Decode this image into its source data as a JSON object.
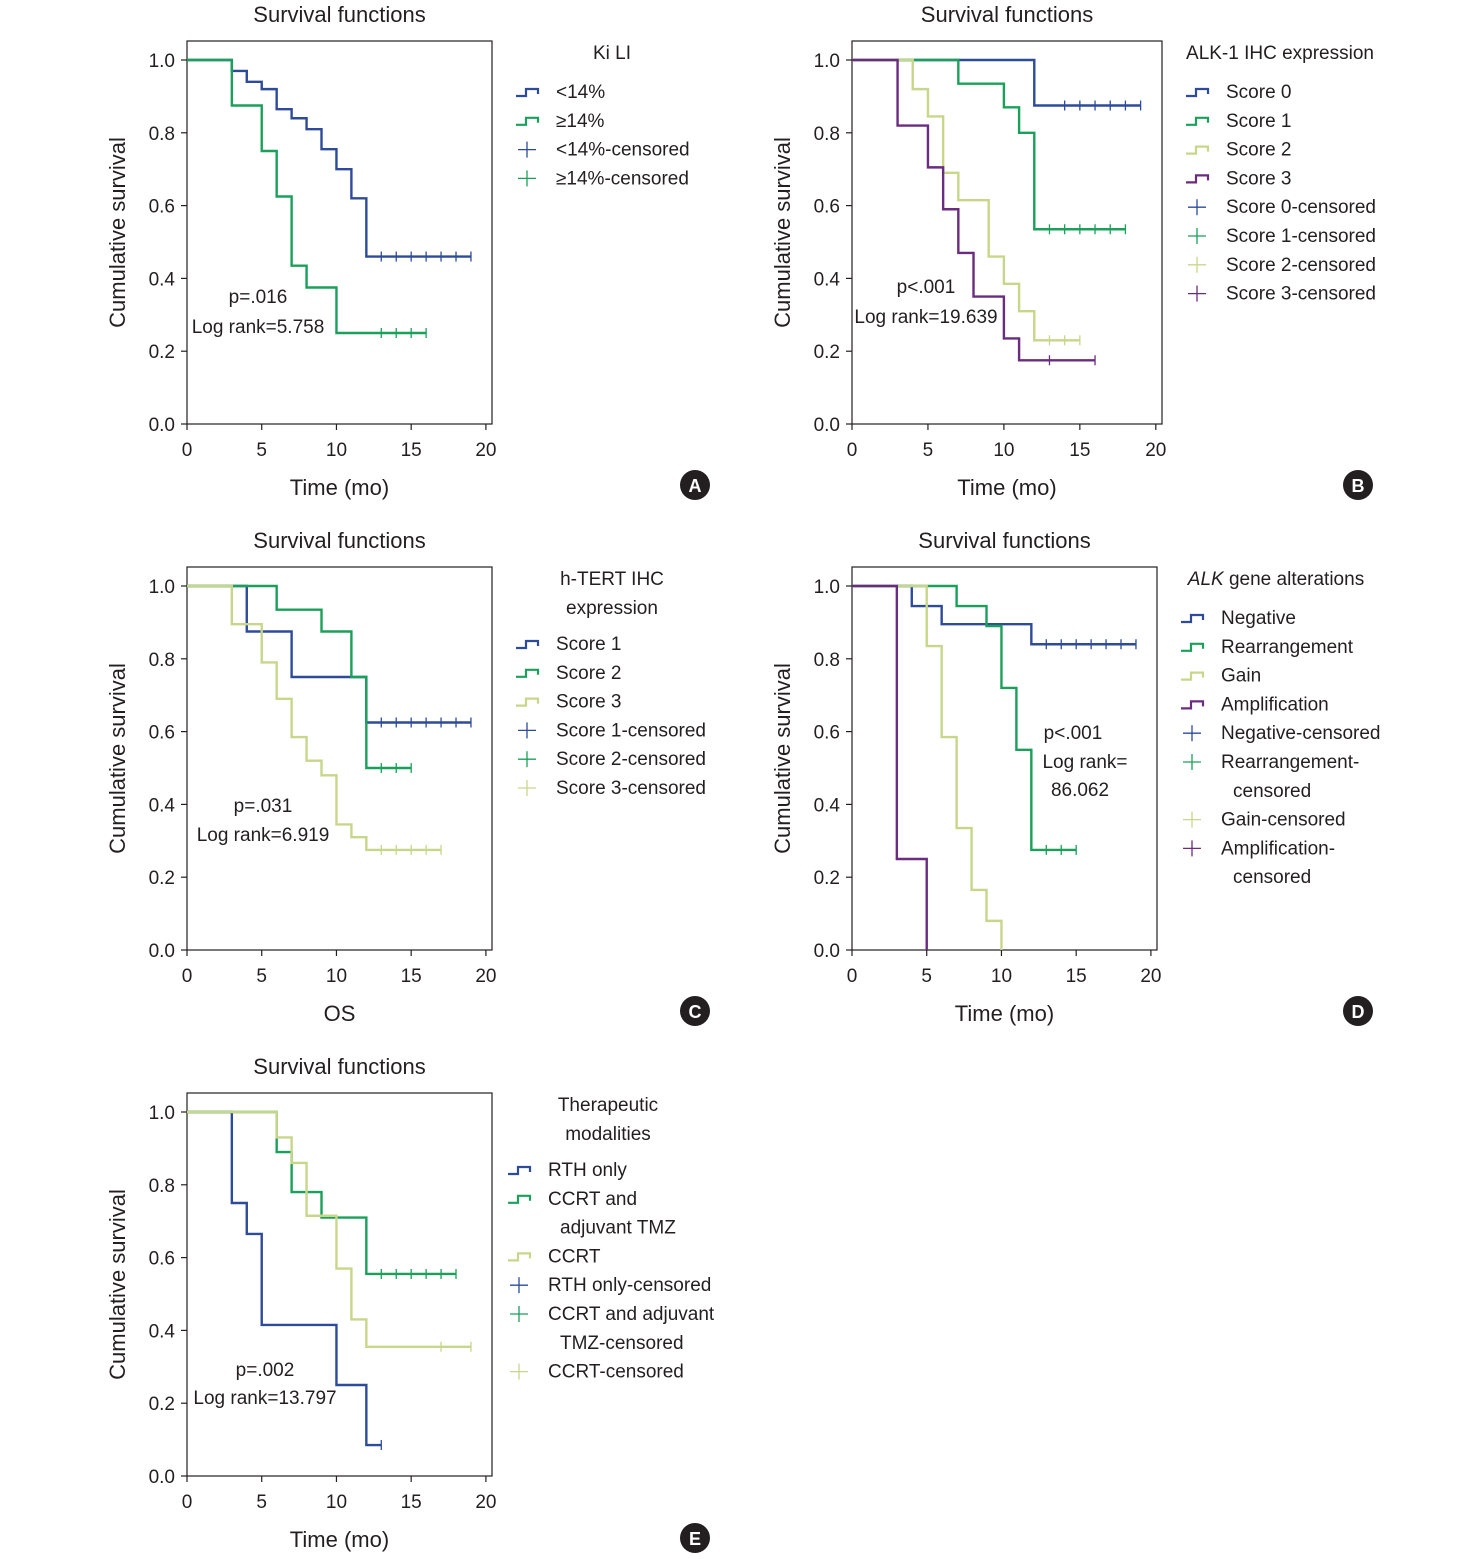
{
  "colors": {
    "blue": "#2e4b9a",
    "green": "#1aa05a",
    "yellow": "#c8d68a",
    "purple": "#6a2c7f",
    "axis": "#231f20"
  },
  "chart_data": [
    {
      "panel": "A",
      "type": "line",
      "step": true,
      "title": "Survival functions",
      "xlabel": "Time (mo)",
      "ylabel": "Cumulative survival",
      "xlim": [
        0,
        20
      ],
      "ylim": [
        0,
        1
      ],
      "xticks": [
        "0",
        "5",
        "10",
        "15",
        "20"
      ],
      "yticks": [
        "0.0",
        "0.2",
        "0.4",
        "0.6",
        "0.8",
        "1.0"
      ],
      "legend_title": [
        "Ki LI"
      ],
      "legend": [
        "<14%",
        "≥14%",
        "<14%-censored",
        "≥14%-censored"
      ],
      "annotation": [
        "p=.016",
        "Log rank=5.758"
      ],
      "series": [
        {
          "name": "<14%",
          "color": "blue",
          "steps": [
            [
              0,
              1
            ],
            [
              3,
              0.97
            ],
            [
              4,
              0.94
            ],
            [
              5,
              0.92
            ],
            [
              6,
              0.865
            ],
            [
              7,
              0.84
            ],
            [
              8,
              0.81
            ],
            [
              9,
              0.755
            ],
            [
              10,
              0.7
            ],
            [
              11,
              0.62
            ],
            [
              12,
              0.46
            ],
            [
              19,
              0.46
            ]
          ],
          "censored": [
            13,
            14,
            15,
            16,
            17,
            18,
            19
          ]
        },
        {
          "name": "≥14%",
          "color": "green",
          "steps": [
            [
              0,
              1
            ],
            [
              3,
              0.875
            ],
            [
              5,
              0.75
            ],
            [
              6,
              0.625
            ],
            [
              7,
              0.435
            ],
            [
              8,
              0.375
            ],
            [
              10,
              0.25
            ],
            [
              16,
              0.25
            ]
          ],
          "censored": [
            13,
            14,
            15,
            16
          ]
        }
      ]
    },
    {
      "panel": "B",
      "type": "line",
      "step": true,
      "title": "Survival functions",
      "xlabel": "Time (mo)",
      "ylabel": "Cumulative survival",
      "xlim": [
        0,
        20
      ],
      "ylim": [
        0,
        1
      ],
      "xticks": [
        "0",
        "5",
        "10",
        "15",
        "20"
      ],
      "yticks": [
        "0.0",
        "0.2",
        "0.4",
        "0.6",
        "0.8",
        "1.0"
      ],
      "legend_title": [
        "ALK-1 IHC expression"
      ],
      "legend": [
        "Score 0",
        "Score 1",
        "Score 2",
        "Score 3",
        "Score 0-censored",
        "Score 1-censored",
        "Score 2-censored",
        "Score 3-censored"
      ],
      "annotation": [
        "p<.001",
        "Log rank=19.639"
      ],
      "series": [
        {
          "name": "Score 0",
          "color": "blue",
          "steps": [
            [
              0,
              1
            ],
            [
              12,
              0.875
            ],
            [
              19,
              0.875
            ]
          ],
          "censored": [
            14,
            15,
            16,
            17,
            18,
            19
          ]
        },
        {
          "name": "Score 1",
          "color": "green",
          "steps": [
            [
              0,
              1
            ],
            [
              7,
              0.935
            ],
            [
              10,
              0.87
            ],
            [
              11,
              0.8
            ],
            [
              12,
              0.535
            ],
            [
              18,
              0.535
            ]
          ],
          "censored": [
            13,
            14,
            15,
            16,
            17,
            18
          ]
        },
        {
          "name": "Score 2",
          "color": "yellow",
          "steps": [
            [
              0,
              1
            ],
            [
              4,
              0.92
            ],
            [
              5,
              0.845
            ],
            [
              6,
              0.69
            ],
            [
              7,
              0.615
            ],
            [
              9,
              0.46
            ],
            [
              10,
              0.385
            ],
            [
              11,
              0.31
            ],
            [
              12,
              0.23
            ],
            [
              15,
              0.23
            ]
          ],
          "censored": [
            13,
            14,
            15
          ]
        },
        {
          "name": "Score 3",
          "color": "purple",
          "steps": [
            [
              0,
              1
            ],
            [
              3,
              0.82
            ],
            [
              5,
              0.705
            ],
            [
              6,
              0.59
            ],
            [
              7,
              0.47
            ],
            [
              8,
              0.35
            ],
            [
              10,
              0.235
            ],
            [
              11,
              0.175
            ],
            [
              16,
              0.175
            ]
          ],
          "censored": [
            13,
            16
          ]
        }
      ]
    },
    {
      "panel": "C",
      "type": "line",
      "step": true,
      "title": "Survival functions",
      "xlabel": "OS",
      "ylabel": "Cumulative survival",
      "xlim": [
        0,
        20
      ],
      "ylim": [
        0,
        1
      ],
      "xticks": [
        "0",
        "5",
        "10",
        "15",
        "20"
      ],
      "yticks": [
        "0.0",
        "0.2",
        "0.4",
        "0.6",
        "0.8",
        "1.0"
      ],
      "legend_title": [
        "h-TERT IHC",
        "expression"
      ],
      "legend": [
        "Score 1",
        "Score 2",
        "Score 3",
        "Score 1-censored",
        "Score 2-censored",
        "Score 3-censored"
      ],
      "annotation": [
        "p=.031",
        "Log rank=6.919"
      ],
      "series": [
        {
          "name": "Score 1",
          "color": "blue",
          "steps": [
            [
              0,
              1
            ],
            [
              4,
              0.875
            ],
            [
              7,
              0.75
            ],
            [
              12,
              0.625
            ],
            [
              19,
              0.625
            ]
          ],
          "censored": [
            13,
            14,
            15,
            16,
            17,
            18,
            19
          ]
        },
        {
          "name": "Score 2",
          "color": "green",
          "steps": [
            [
              0,
              1
            ],
            [
              6,
              0.935
            ],
            [
              9,
              0.875
            ],
            [
              11,
              0.75
            ],
            [
              12,
              0.5
            ],
            [
              15,
              0.5
            ]
          ],
          "censored": [
            13,
            14,
            15
          ]
        },
        {
          "name": "Score 3",
          "color": "yellow",
          "steps": [
            [
              0,
              1
            ],
            [
              3,
              0.895
            ],
            [
              5,
              0.79
            ],
            [
              6,
              0.69
            ],
            [
              7,
              0.585
            ],
            [
              8,
              0.52
            ],
            [
              9,
              0.48
            ],
            [
              10,
              0.345
            ],
            [
              11,
              0.31
            ],
            [
              12,
              0.275
            ],
            [
              17,
              0.275
            ]
          ],
          "censored": [
            13,
            14,
            15,
            16,
            17
          ]
        }
      ]
    },
    {
      "panel": "D",
      "type": "line",
      "step": true,
      "title": "Survival functions",
      "xlabel": "Time (mo)",
      "ylabel": "Cumulative survival",
      "xlim": [
        0,
        20
      ],
      "ylim": [
        0,
        1
      ],
      "xticks": [
        "0",
        "5",
        "10",
        "15",
        "20"
      ],
      "yticks": [
        "0.0",
        "0.2",
        "0.4",
        "0.6",
        "0.8",
        "1.0"
      ],
      "legend_title_italic": "ALK",
      "legend_title_rest": " gene alterations",
      "legend": [
        "Negative",
        "Rearrangement",
        "Gain",
        "Amplification",
        "Negative-censored",
        "Rearrangement-",
        "censored",
        "Gain-censored",
        "Amplification-",
        "censored"
      ],
      "annotation": [
        "p<.001",
        "Log rank=",
        "86.062"
      ],
      "series": [
        {
          "name": "Negative",
          "color": "blue",
          "steps": [
            [
              0,
              1
            ],
            [
              4,
              0.945
            ],
            [
              6,
              0.895
            ],
            [
              12,
              0.84
            ],
            [
              19,
              0.84
            ]
          ],
          "censored": [
            13,
            14,
            15,
            16,
            17,
            18,
            19
          ]
        },
        {
          "name": "Rearrangement",
          "color": "green",
          "steps": [
            [
              0,
              1
            ],
            [
              7,
              0.945
            ],
            [
              9,
              0.89
            ],
            [
              10,
              0.72
            ],
            [
              11,
              0.55
            ],
            [
              12,
              0.275
            ],
            [
              15,
              0.275
            ]
          ],
          "censored": [
            13,
            14,
            15
          ]
        },
        {
          "name": "Gain",
          "color": "yellow",
          "steps": [
            [
              0,
              1
            ],
            [
              5,
              0.835
            ],
            [
              6,
              0.585
            ],
            [
              7,
              0.335
            ],
            [
              8,
              0.165
            ],
            [
              9,
              0.08
            ],
            [
              10,
              0
            ]
          ],
          "censored": []
        },
        {
          "name": "Amplification",
          "color": "purple",
          "steps": [
            [
              0,
              1
            ],
            [
              3,
              0.25
            ],
            [
              5,
              0
            ]
          ],
          "censored": []
        }
      ]
    },
    {
      "panel": "E",
      "type": "line",
      "step": true,
      "title": "Survival functions",
      "xlabel": "Time (mo)",
      "ylabel": "Cumulative survival",
      "xlim": [
        0,
        20
      ],
      "ylim": [
        0,
        1
      ],
      "xticks": [
        "0",
        "5",
        "10",
        "15",
        "20"
      ],
      "yticks": [
        "0.0",
        "0.2",
        "0.4",
        "0.6",
        "0.8",
        "1.0"
      ],
      "legend_title": [
        "Therapeutic",
        "modalities"
      ],
      "legend": [
        "RTH only",
        "CCRT and",
        "adjuvant TMZ",
        "CCRT",
        "RTH only-censored",
        "CCRT and adjuvant",
        "TMZ-censored",
        "CCRT-censored"
      ],
      "annotation": [
        "p=.002",
        "Log rank=13.797"
      ],
      "series": [
        {
          "name": "RTH only",
          "color": "blue",
          "steps": [
            [
              0,
              1
            ],
            [
              3,
              0.75
            ],
            [
              4,
              0.665
            ],
            [
              5,
              0.415
            ],
            [
              10,
              0.25
            ],
            [
              12,
              0.085
            ],
            [
              13,
              0.085
            ]
          ],
          "censored": [
            13
          ]
        },
        {
          "name": "CCRT and adjuvant TMZ",
          "color": "green",
          "steps": [
            [
              0,
              1
            ],
            [
              6,
              0.89
            ],
            [
              7,
              0.78
            ],
            [
              9,
              0.71
            ],
            [
              12,
              0.555
            ],
            [
              18,
              0.555
            ]
          ],
          "censored": [
            13,
            14,
            15,
            16,
            17,
            18
          ]
        },
        {
          "name": "CCRT",
          "color": "yellow",
          "steps": [
            [
              0,
              1
            ],
            [
              6,
              0.93
            ],
            [
              7,
              0.86
            ],
            [
              8,
              0.715
            ],
            [
              10,
              0.57
            ],
            [
              11,
              0.43
            ],
            [
              12,
              0.355
            ],
            [
              19,
              0.355
            ]
          ],
          "censored": [
            17,
            19
          ]
        }
      ]
    }
  ]
}
